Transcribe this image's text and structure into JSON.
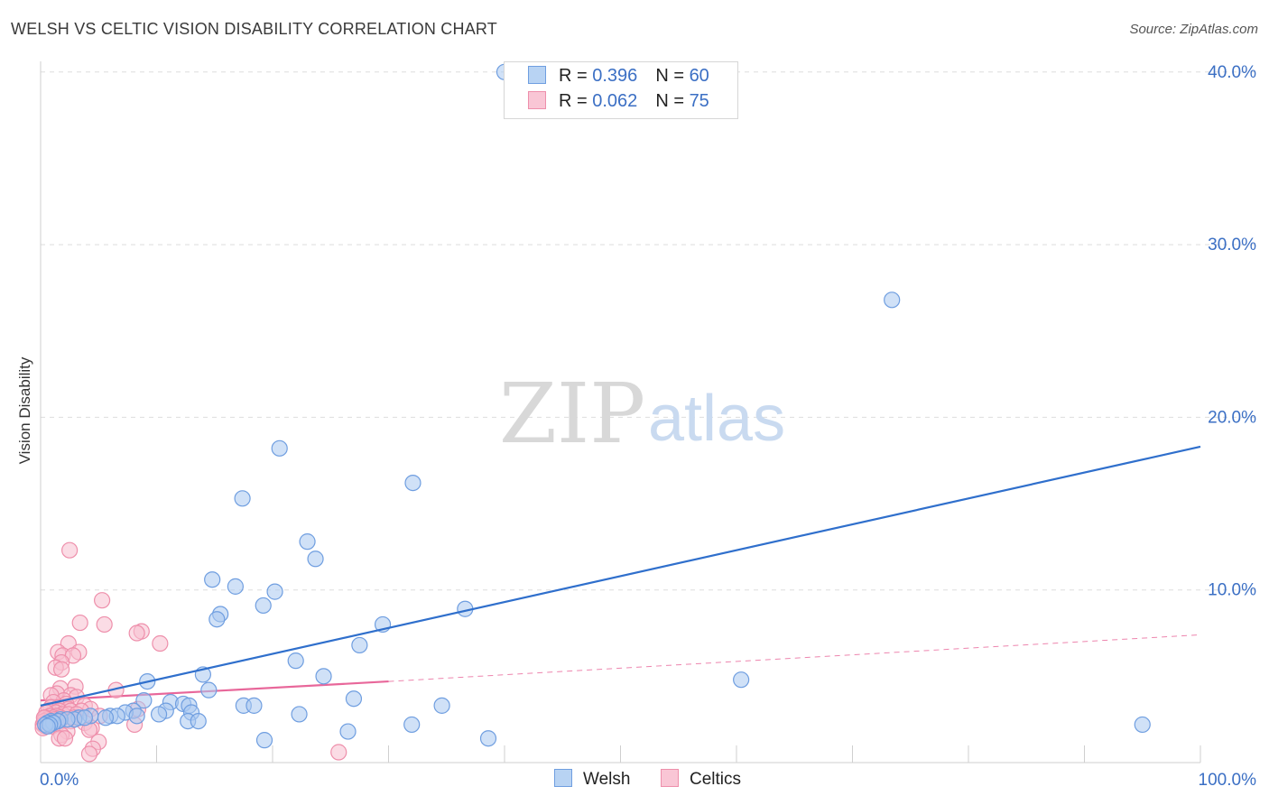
{
  "title": "WELSH VS CELTIC VISION DISABILITY CORRELATION CHART",
  "source": "Source: ZipAtlas.com",
  "watermark": {
    "zip": "ZIP",
    "atlas": "atlas"
  },
  "legend": {
    "welsh": {
      "r_label": "R = ",
      "r_value": "0.396",
      "n_label": "N = ",
      "n_value": "60"
    },
    "celtics": {
      "r_label": "R = ",
      "r_value": "0.062",
      "n_label": "N = ",
      "n_value": "75"
    }
  },
  "colors": {
    "welsh_fill": "#a9c8f0",
    "welsh_stroke": "#6f9ee0",
    "welsh_line": "#2f6fcc",
    "celtics_fill": "#f8bfd0",
    "celtics_stroke": "#ee8fab",
    "celtics_line": "#e8679a",
    "tick_label": "#3b6fc4",
    "grid": "#dddddd"
  },
  "chart_data": {
    "type": "scatter",
    "title": "WELSH VS CELTIC VISION DISABILITY CORRELATION CHART",
    "xlabel": "",
    "ylabel": "Vision Disability",
    "xlim": [
      0,
      100
    ],
    "ylim": [
      0,
      42
    ],
    "x_tick_labels": [
      "0.0%",
      "100.0%"
    ],
    "y_ticks": [
      10,
      20,
      30,
      40
    ],
    "y_tick_labels": [
      "10.0%",
      "20.0%",
      "30.0%",
      "40.0%"
    ],
    "series": [
      {
        "name": "Welsh",
        "R": 0.396,
        "N": 60,
        "trend": {
          "x": [
            0,
            100
          ],
          "y": [
            3.3,
            18.3
          ],
          "style": "solid"
        },
        "points": [
          [
            40.0,
            40.0
          ],
          [
            73.4,
            26.8
          ],
          [
            20.6,
            18.2
          ],
          [
            32.1,
            16.2
          ],
          [
            17.4,
            15.3
          ],
          [
            23.0,
            12.8
          ],
          [
            23.7,
            11.8
          ],
          [
            14.8,
            10.6
          ],
          [
            16.8,
            10.2
          ],
          [
            20.2,
            9.9
          ],
          [
            15.5,
            8.6
          ],
          [
            15.2,
            8.3
          ],
          [
            19.2,
            9.1
          ],
          [
            36.6,
            8.9
          ],
          [
            29.5,
            8.0
          ],
          [
            27.5,
            6.8
          ],
          [
            22.0,
            5.9
          ],
          [
            14.0,
            5.1
          ],
          [
            24.4,
            5.0
          ],
          [
            9.2,
            4.7
          ],
          [
            60.4,
            4.8
          ],
          [
            14.5,
            4.2
          ],
          [
            8.9,
            3.6
          ],
          [
            27.0,
            3.7
          ],
          [
            11.2,
            3.5
          ],
          [
            12.3,
            3.4
          ],
          [
            12.8,
            3.3
          ],
          [
            17.5,
            3.3
          ],
          [
            18.4,
            3.3
          ],
          [
            34.6,
            3.3
          ],
          [
            22.3,
            2.8
          ],
          [
            10.8,
            3.0
          ],
          [
            13.0,
            2.9
          ],
          [
            8.0,
            3.0
          ],
          [
            7.3,
            2.9
          ],
          [
            10.2,
            2.8
          ],
          [
            8.3,
            2.7
          ],
          [
            6.0,
            2.7
          ],
          [
            6.6,
            2.7
          ],
          [
            4.3,
            2.7
          ],
          [
            5.6,
            2.6
          ],
          [
            3.3,
            2.6
          ],
          [
            2.9,
            2.5
          ],
          [
            1.7,
            2.5
          ],
          [
            2.3,
            2.5
          ],
          [
            0.9,
            2.4
          ],
          [
            3.8,
            2.6
          ],
          [
            1.5,
            2.4
          ],
          [
            0.6,
            2.3
          ],
          [
            1.1,
            2.3
          ],
          [
            0.4,
            2.2
          ],
          [
            0.8,
            2.2
          ],
          [
            12.7,
            2.4
          ],
          [
            13.6,
            2.4
          ],
          [
            32.0,
            2.2
          ],
          [
            95.0,
            2.2
          ],
          [
            26.5,
            1.8
          ],
          [
            19.3,
            1.3
          ],
          [
            38.6,
            1.4
          ],
          [
            0.6,
            2.1
          ]
        ]
      },
      {
        "name": "Celtics",
        "R": 0.062,
        "N": 75,
        "trend": {
          "x": [
            0,
            30
          ],
          "y": [
            3.6,
            4.7
          ],
          "style": "solid"
        },
        "trend_extension": {
          "x": [
            30,
            100
          ],
          "y": [
            4.7,
            7.4
          ],
          "style": "dashed"
        },
        "points": [
          [
            2.5,
            12.3
          ],
          [
            5.3,
            9.4
          ],
          [
            3.4,
            8.1
          ],
          [
            5.5,
            8.0
          ],
          [
            8.7,
            7.6
          ],
          [
            8.3,
            7.5
          ],
          [
            10.3,
            6.9
          ],
          [
            2.4,
            6.9
          ],
          [
            1.5,
            6.4
          ],
          [
            3.3,
            6.4
          ],
          [
            1.9,
            6.2
          ],
          [
            2.8,
            6.2
          ],
          [
            1.8,
            5.8
          ],
          [
            1.3,
            5.5
          ],
          [
            1.8,
            5.4
          ],
          [
            3.0,
            4.4
          ],
          [
            1.7,
            4.3
          ],
          [
            6.5,
            4.2
          ],
          [
            1.4,
            4.0
          ],
          [
            2.6,
            3.9
          ],
          [
            3.1,
            3.8
          ],
          [
            0.9,
            3.9
          ],
          [
            2.0,
            3.6
          ],
          [
            1.1,
            3.5
          ],
          [
            2.2,
            3.4
          ],
          [
            3.8,
            3.3
          ],
          [
            1.5,
            3.2
          ],
          [
            0.9,
            3.2
          ],
          [
            2.4,
            3.1
          ],
          [
            4.3,
            3.1
          ],
          [
            8.4,
            3.1
          ],
          [
            0.7,
            3.0
          ],
          [
            1.6,
            3.0
          ],
          [
            2.6,
            3.0
          ],
          [
            3.5,
            3.0
          ],
          [
            1.3,
            2.9
          ],
          [
            0.5,
            2.9
          ],
          [
            1.9,
            2.8
          ],
          [
            2.4,
            2.8
          ],
          [
            3.1,
            2.8
          ],
          [
            0.8,
            2.7
          ],
          [
            1.4,
            2.7
          ],
          [
            5.1,
            2.7
          ],
          [
            0.4,
            2.6
          ],
          [
            1.1,
            2.6
          ],
          [
            1.7,
            2.6
          ],
          [
            2.9,
            2.6
          ],
          [
            0.6,
            2.5
          ],
          [
            1.2,
            2.5
          ],
          [
            2.2,
            2.5
          ],
          [
            0.3,
            2.4
          ],
          [
            0.9,
            2.4
          ],
          [
            1.6,
            2.4
          ],
          [
            2.6,
            2.4
          ],
          [
            0.5,
            2.3
          ],
          [
            1.1,
            2.3
          ],
          [
            3.8,
            2.3
          ],
          [
            0.2,
            2.2
          ],
          [
            0.7,
            2.2
          ],
          [
            1.4,
            2.2
          ],
          [
            8.1,
            2.2
          ],
          [
            0.4,
            2.1
          ],
          [
            1.0,
            2.1
          ],
          [
            4.4,
            2.0
          ],
          [
            0.2,
            2.0
          ],
          [
            4.2,
            1.9
          ],
          [
            2.3,
            1.8
          ],
          [
            1.8,
            1.6
          ],
          [
            1.6,
            1.4
          ],
          [
            2.1,
            1.4
          ],
          [
            5.0,
            1.2
          ],
          [
            4.5,
            0.8
          ],
          [
            4.2,
            0.5
          ],
          [
            25.7,
            0.6
          ],
          [
            0.3,
            2.6
          ]
        ]
      }
    ]
  }
}
